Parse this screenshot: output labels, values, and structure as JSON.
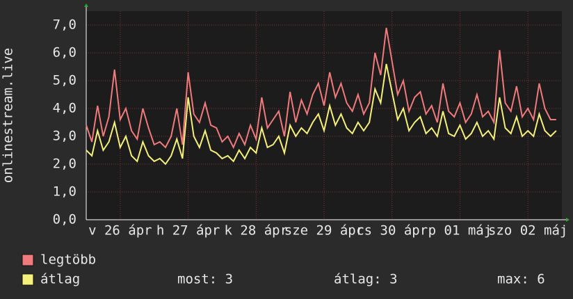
{
  "chart_data": {
    "type": "line",
    "y_label": "onlinestream.live",
    "x": [
      0,
      2,
      4,
      6,
      8,
      10,
      12,
      14,
      16,
      18,
      20,
      22,
      24,
      26,
      28,
      30,
      32,
      34,
      36,
      38,
      40,
      42,
      44,
      46,
      48,
      50,
      52,
      54,
      56,
      58,
      60,
      62,
      64,
      66,
      68,
      70,
      72,
      74,
      76,
      78,
      80,
      82,
      84,
      86,
      88,
      90,
      92,
      94,
      96,
      98,
      100,
      102,
      104,
      106,
      108,
      110,
      112,
      114,
      116,
      118,
      120,
      122,
      124,
      126,
      128,
      130,
      132,
      134,
      136,
      138,
      140,
      142,
      144,
      146,
      148,
      150,
      152,
      154,
      156,
      158,
      160,
      162,
      164,
      166
    ],
    "series": [
      {
        "name": "legtöbb",
        "color": "#f07a7c",
        "values": [
          3.4,
          2.8,
          4.1,
          3.0,
          3.7,
          5.4,
          3.6,
          4.0,
          3.2,
          2.9,
          4.0,
          3.3,
          2.7,
          2.8,
          2.6,
          3.0,
          4.0,
          2.7,
          5.3,
          3.8,
          3.5,
          4.2,
          3.4,
          3.3,
          2.8,
          3.0,
          2.6,
          3.1,
          2.7,
          3.4,
          2.9,
          4.4,
          3.3,
          3.6,
          3.9,
          3.0,
          4.6,
          3.5,
          4.3,
          3.8,
          4.5,
          4.9,
          4.1,
          5.3,
          4.4,
          4.9,
          4.2,
          3.9,
          4.5,
          3.8,
          4.2,
          6.0,
          5.2,
          6.9,
          5.7,
          4.5,
          5.0,
          3.9,
          4.4,
          4.6,
          3.8,
          4.1,
          3.5,
          4.9,
          3.9,
          3.7,
          4.2,
          3.5,
          3.8,
          4.5,
          3.7,
          3.9,
          3.5,
          6.1,
          4.2,
          3.9,
          4.8,
          3.7,
          4.0,
          3.6,
          4.9,
          4.0,
          3.6,
          3.6
        ]
      },
      {
        "name": "átlag",
        "color": "#f5f07a",
        "values": [
          2.5,
          2.3,
          3.2,
          2.5,
          2.8,
          3.5,
          2.6,
          3.0,
          2.3,
          2.1,
          2.8,
          2.3,
          2.1,
          2.2,
          2.0,
          2.3,
          2.9,
          2.2,
          4.4,
          3.0,
          2.6,
          3.2,
          2.5,
          2.4,
          2.2,
          2.3,
          2.1,
          2.5,
          2.2,
          2.6,
          2.4,
          3.3,
          2.6,
          2.7,
          3.0,
          2.4,
          3.4,
          3.0,
          3.3,
          3.1,
          3.5,
          3.8,
          3.2,
          4.1,
          3.4,
          3.8,
          3.3,
          3.1,
          3.5,
          3.2,
          3.5,
          4.7,
          4.2,
          5.6,
          4.6,
          3.6,
          4.0,
          3.2,
          3.5,
          3.7,
          3.1,
          3.3,
          3.0,
          3.9,
          3.1,
          3.0,
          3.4,
          2.9,
          3.1,
          3.5,
          3.0,
          3.2,
          2.9,
          4.4,
          3.3,
          3.1,
          3.7,
          3.0,
          3.2,
          3.0,
          3.8,
          3.2,
          3.0,
          3.2
        ]
      }
    ],
    "xlim": [
      0,
      168
    ],
    "xticks": [
      {
        "value": 12,
        "label": "v 26 ápr"
      },
      {
        "value": 36,
        "label": "h 27 ápr"
      },
      {
        "value": 60,
        "label": "k 28 ápr"
      },
      {
        "value": 84,
        "label": "sze 29 ápr"
      },
      {
        "value": 108,
        "label": "cs 30 ápr"
      },
      {
        "value": 132,
        "label": "p 01 máj"
      },
      {
        "value": 156,
        "label": "szo 02 máj"
      }
    ],
    "ylim": [
      0,
      7.5
    ],
    "yticks": [
      {
        "value": 0,
        "label": "0,0"
      },
      {
        "value": 1,
        "label": "1,0"
      },
      {
        "value": 2,
        "label": "2,0"
      },
      {
        "value": 3,
        "label": "3,0"
      },
      {
        "value": 4,
        "label": "4,0"
      },
      {
        "value": 5,
        "label": "5,0"
      },
      {
        "value": 6,
        "label": "6,0"
      },
      {
        "value": 7,
        "label": "7,0"
      }
    ],
    "grid": true,
    "stats": [
      "most: 3",
      "átlag: 3",
      "max: 6"
    ]
  }
}
